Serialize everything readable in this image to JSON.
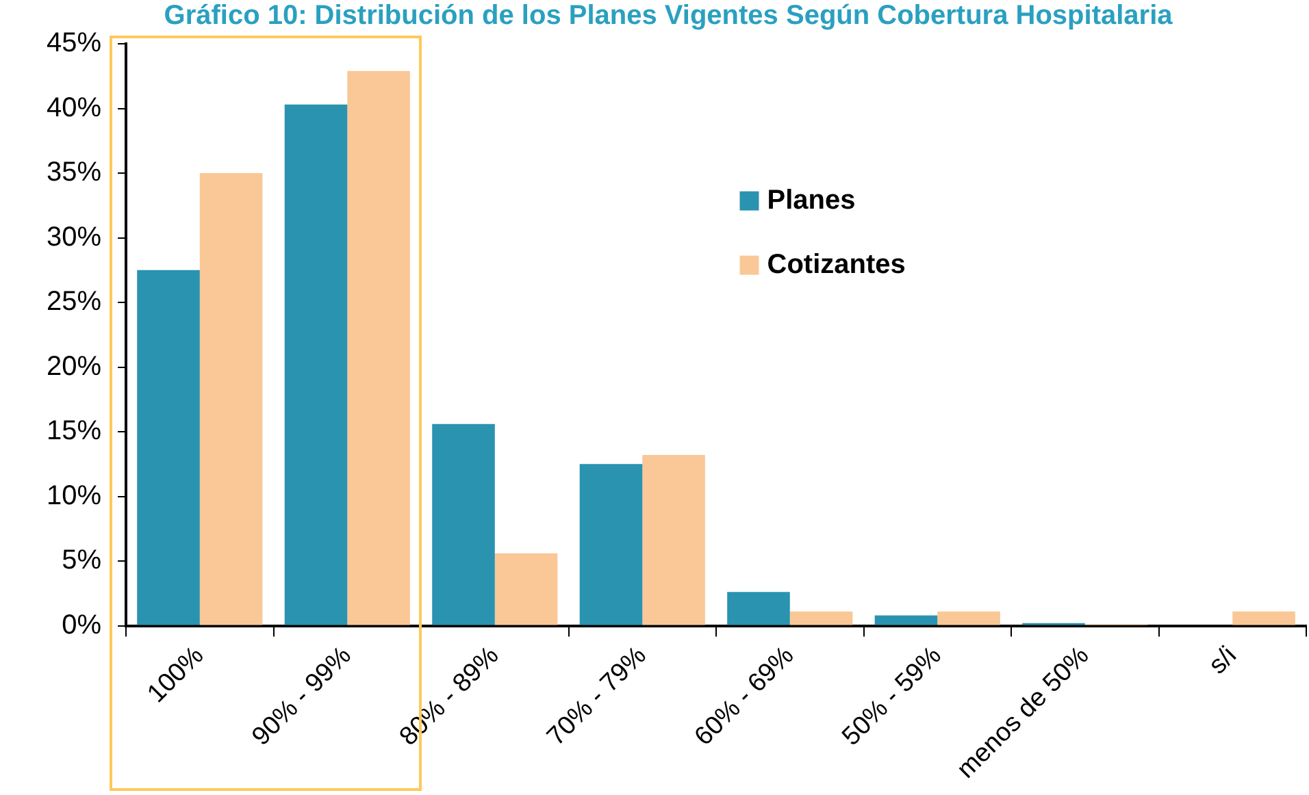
{
  "chart_data": {
    "type": "bar",
    "title": "Gráfico 10: Distribución de los Planes Vigentes Según Cobertura Hospitalaria",
    "categories": [
      "100%",
      "90% - 99%",
      "80% - 89%",
      "70% - 79%",
      "60% - 69%",
      "50% - 59%",
      "menos de 50%",
      "s/i"
    ],
    "series": [
      {
        "name": "Planes",
        "color": "#2a93b0",
        "values": [
          27.5,
          40.3,
          15.6,
          12.5,
          2.6,
          0.8,
          0.2,
          0
        ]
      },
      {
        "name": "Cotizantes",
        "color": "#f9c896",
        "values": [
          35,
          42.9,
          5.6,
          13.2,
          1.1,
          1.1,
          0.1,
          1.1
        ]
      }
    ],
    "ylim": [
      0,
      45
    ],
    "yticks": [
      {
        "value": 0,
        "label": "0%"
      },
      {
        "value": 5,
        "label": "5%"
      },
      {
        "value": 10,
        "label": "10%"
      },
      {
        "value": 15,
        "label": "15%"
      },
      {
        "value": 20,
        "label": "20%"
      },
      {
        "value": 25,
        "label": "25%"
      },
      {
        "value": 30,
        "label": "30%"
      },
      {
        "value": 35,
        "label": "35%"
      },
      {
        "value": 40,
        "label": "40%"
      },
      {
        "value": 45,
        "label": "45%"
      }
    ],
    "legend": "top",
    "grid": false
  }
}
